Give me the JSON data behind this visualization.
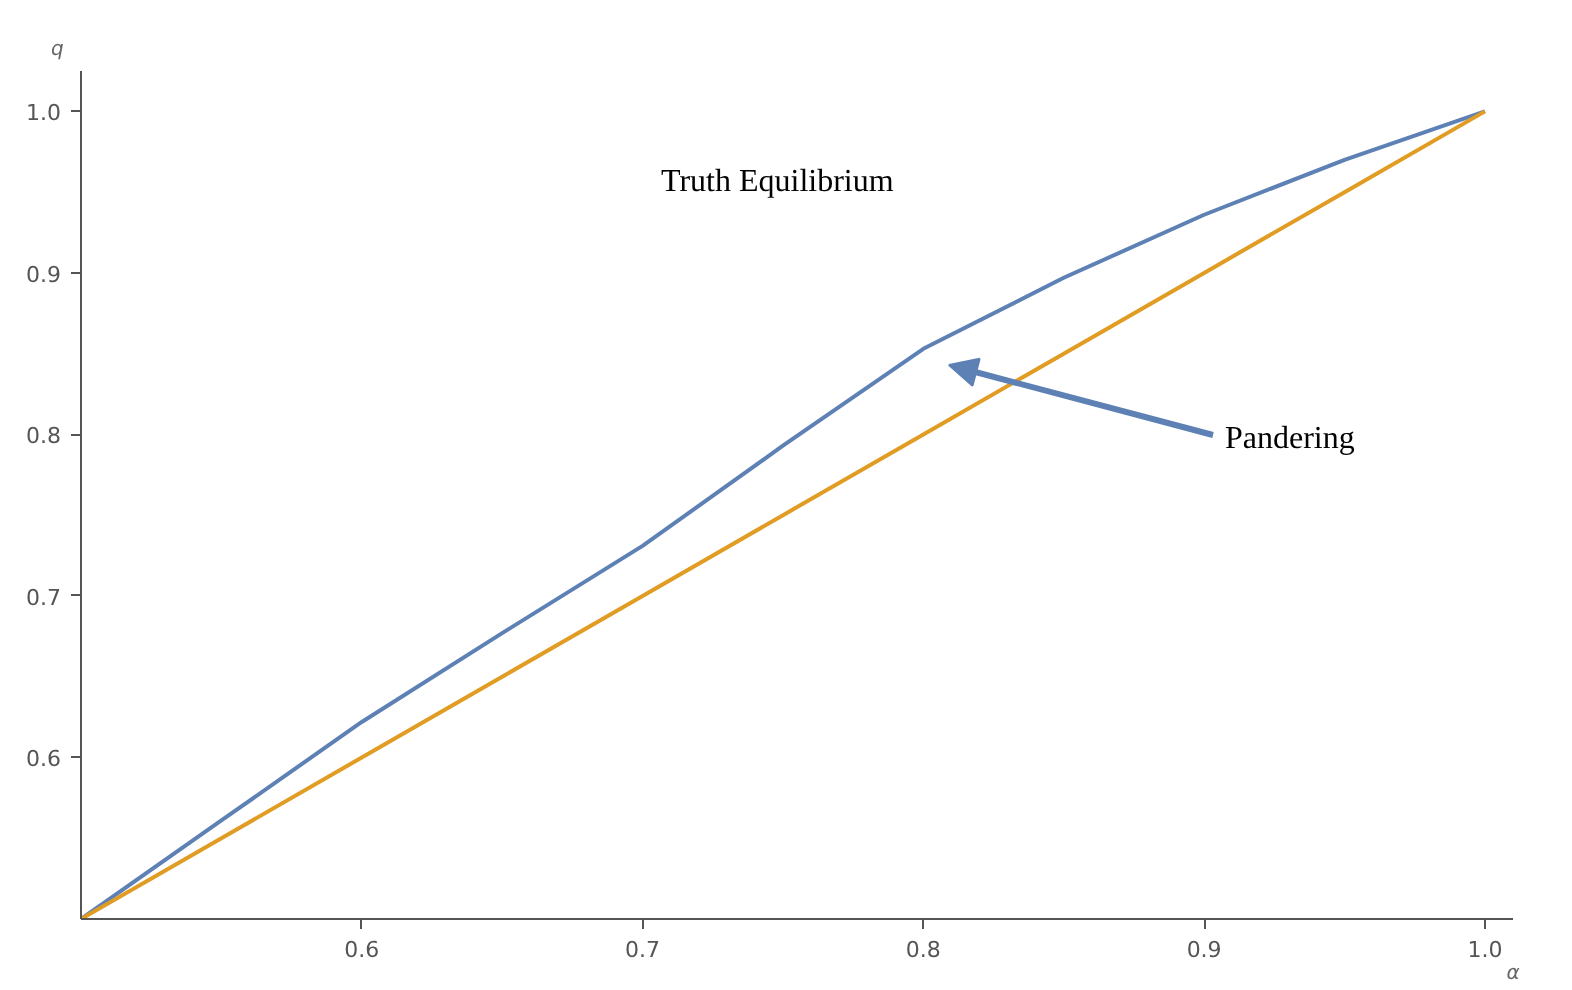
{
  "chart_data": {
    "type": "line",
    "xlabel": "α",
    "ylabel": "q",
    "x": [
      0.5,
      0.55,
      0.6,
      0.65,
      0.7,
      0.75,
      0.8,
      0.85,
      0.9,
      0.95,
      1.0
    ],
    "series": [
      {
        "color": "#5e81b5",
        "values": [
          0.5,
          0.561,
          0.622,
          0.677,
          0.731,
          0.793,
          0.853,
          0.897,
          0.936,
          0.97,
          1.0
        ]
      },
      {
        "color": "#e19c24",
        "values": [
          0.5,
          0.55,
          0.6,
          0.65,
          0.7,
          0.75,
          0.8,
          0.85,
          0.9,
          0.95,
          1.0
        ]
      }
    ],
    "xlim": [
      0.5,
      1.01
    ],
    "ylim": [
      0.5,
      1.025
    ],
    "xticks": [
      0.6,
      0.7,
      0.8,
      0.9,
      {
        "value": 1,
        "label": "1.0"
      }
    ],
    "yticks": [
      0.6,
      0.7,
      0.8,
      0.9,
      {
        "value": 1,
        "label": "1.0"
      }
    ],
    "annotations": [
      "Truth Equilibrium",
      "Pandering"
    ],
    "grid": false,
    "marker": "none",
    "line_style": "solid"
  }
}
